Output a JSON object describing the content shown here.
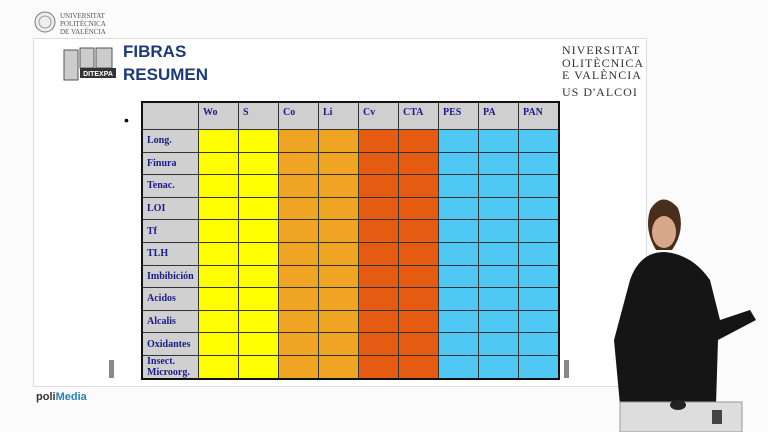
{
  "header": {
    "university_lines": [
      "UNIVERSITAT",
      "POLITÈCNICA",
      "DE VALÈNCIA"
    ]
  },
  "slide": {
    "logo_text": "DITEXPA",
    "title": "FIBRAS",
    "subtitle": "RESUMEN",
    "side_logo_lines": [
      "NIVERSITAT",
      "OLITÈCNICA",
      "E VALÈNCIA",
      "US D'ALCOI"
    ],
    "table": {
      "columns": [
        "Wo",
        "S",
        "Co",
        "Li",
        "Cv",
        "CTA",
        "PES",
        "PA",
        "PAN"
      ],
      "rows": [
        "Long.",
        "Finura",
        "Tenac.",
        "LOI",
        "Tf",
        "TLH",
        "Imbibición",
        "Acidos",
        "Alcalis",
        "Oxidantes",
        "Insect.\nMicroorg."
      ]
    }
  },
  "footer": {
    "brand_prefix": "poli",
    "brand_suffix": "Media"
  }
}
